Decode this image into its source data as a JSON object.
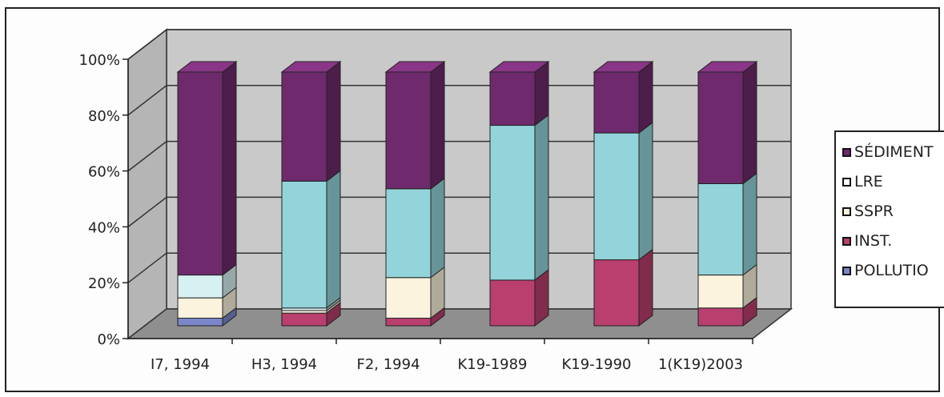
{
  "chart_data": {
    "type": "bar",
    "stacked": true,
    "three_d": true,
    "categories": [
      "I7, 1994",
      "H3, 1994",
      "F2, 1994",
      "K19-1989",
      "K19-1990",
      "1(K19)2003"
    ],
    "y_ticks": [
      "0%",
      "20%",
      "40%",
      "60%",
      "80%",
      "100%"
    ],
    "ylim": [
      0,
      100
    ],
    "grid": true,
    "legend_position": "right",
    "series": [
      {
        "name": "POLLUTIO",
        "color": "#7b86c9",
        "values": [
          3,
          0,
          0,
          0,
          0,
          0
        ]
      },
      {
        "name": "INST.",
        "color": "#b83f6e",
        "values": [
          0,
          5,
          3,
          18,
          26,
          7
        ]
      },
      {
        "name": "SSPR",
        "color": "#fbf3de",
        "values": [
          8,
          1,
          16,
          0,
          0,
          13
        ]
      },
      {
        "name": "LRE",
        "color": "#d7f0f2",
        "values": [
          9,
          1,
          0,
          0,
          0,
          0
        ]
      },
      {
        "name": "",
        "color": "#93d4da",
        "values": [
          0,
          50,
          35,
          61,
          50,
          36
        ]
      },
      {
        "name": "SÉDIMENT",
        "color": "#6e2a6c",
        "values": [
          80,
          43,
          46,
          21,
          24,
          44
        ]
      }
    ]
  },
  "legend": {
    "items": [
      {
        "label": "SÉDIMENT",
        "color": "#6e2a6c"
      },
      {
        "label": "LRE",
        "color": "#ffffff"
      },
      {
        "label": "SSPR",
        "color": "#fbf3de"
      },
      {
        "label": "INST.",
        "color": "#b83f6e"
      },
      {
        "label": "POLLUTIO",
        "color": "#7b86c9"
      }
    ]
  }
}
